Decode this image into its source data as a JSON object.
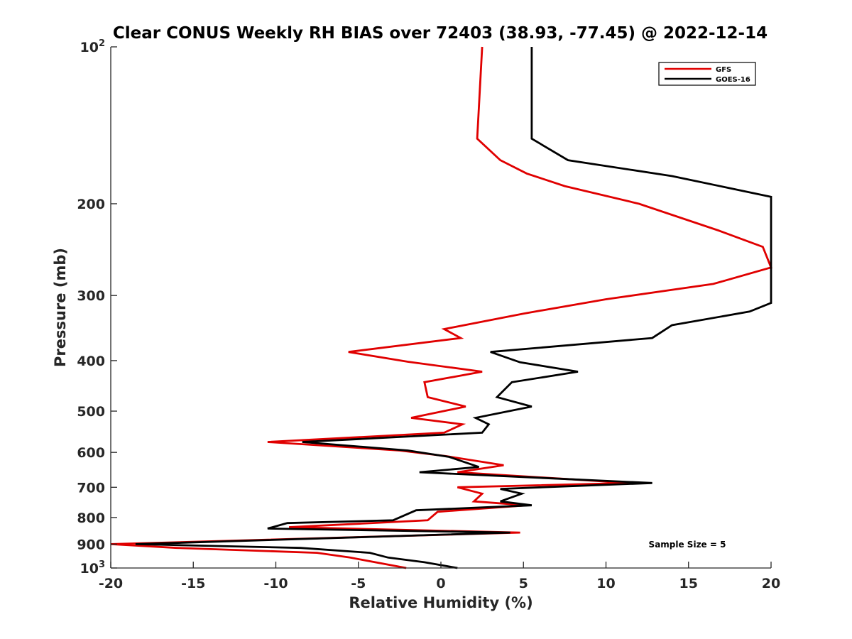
{
  "chart_data": {
    "type": "line",
    "title": "Clear CONUS Weekly RH BIAS over 72403 (38.93, -77.45) @ 2022-12-14",
    "xlabel": "Relative Humidity (%)",
    "ylabel": "Pressure (mb)",
    "xlim": [
      -20,
      20
    ],
    "ylim": [
      100,
      1000
    ],
    "y_scale": "log",
    "y_reversed": true,
    "grid": false,
    "legend_position": "top-right",
    "x_ticks": [
      {
        "value": -20,
        "label": "-20"
      },
      {
        "value": -15,
        "label": "-15"
      },
      {
        "value": -10,
        "label": "-10"
      },
      {
        "value": -5,
        "label": "-5"
      },
      {
        "value": 0,
        "label": "0"
      },
      {
        "value": 5,
        "label": "5"
      },
      {
        "value": 10,
        "label": "10"
      },
      {
        "value": 15,
        "label": "15"
      },
      {
        "value": 20,
        "label": "20"
      }
    ],
    "y_ticks": [
      {
        "value": 100,
        "base": "10",
        "exp": "2"
      },
      {
        "value": 200,
        "base": "200",
        "exp": ""
      },
      {
        "value": 300,
        "base": "300",
        "exp": ""
      },
      {
        "value": 400,
        "base": "400",
        "exp": ""
      },
      {
        "value": 500,
        "base": "500",
        "exp": ""
      },
      {
        "value": 600,
        "base": "600",
        "exp": ""
      },
      {
        "value": 700,
        "base": "700",
        "exp": ""
      },
      {
        "value": 800,
        "base": "800",
        "exp": ""
      },
      {
        "value": 900,
        "base": "900",
        "exp": ""
      },
      {
        "value": 1000,
        "base": "10",
        "exp": "3"
      }
    ],
    "series": [
      {
        "name": "GFS",
        "color": "#e00000",
        "points": [
          {
            "x": 2.5,
            "p": 100
          },
          {
            "x": 2.2,
            "p": 150
          },
          {
            "x": 3.6,
            "p": 165
          },
          {
            "x": 5.2,
            "p": 175
          },
          {
            "x": 7.5,
            "p": 185
          },
          {
            "x": 12.0,
            "p": 200
          },
          {
            "x": 16.8,
            "p": 225
          },
          {
            "x": 19.5,
            "p": 242
          },
          {
            "x": 20.0,
            "p": 265
          },
          {
            "x": 16.5,
            "p": 285
          },
          {
            "x": 10.0,
            "p": 305
          },
          {
            "x": 5.0,
            "p": 325
          },
          {
            "x": 0.2,
            "p": 348
          },
          {
            "x": 1.2,
            "p": 362
          },
          {
            "x": -5.6,
            "p": 385
          },
          {
            "x": -2.0,
            "p": 402
          },
          {
            "x": 2.5,
            "p": 420
          },
          {
            "x": -1.0,
            "p": 440
          },
          {
            "x": -0.8,
            "p": 470
          },
          {
            "x": 1.5,
            "p": 490
          },
          {
            "x": -1.8,
            "p": 515
          },
          {
            "x": 1.3,
            "p": 530
          },
          {
            "x": 0.2,
            "p": 550
          },
          {
            "x": -10.5,
            "p": 573
          },
          {
            "x": -2.5,
            "p": 595
          },
          {
            "x": 0.3,
            "p": 610
          },
          {
            "x": 3.8,
            "p": 635
          },
          {
            "x": 1.0,
            "p": 655
          },
          {
            "x": 11.5,
            "p": 687
          },
          {
            "x": 1.0,
            "p": 700
          },
          {
            "x": 2.5,
            "p": 720
          },
          {
            "x": 2.0,
            "p": 745
          },
          {
            "x": 5.2,
            "p": 758
          },
          {
            "x": -0.2,
            "p": 780
          },
          {
            "x": -0.8,
            "p": 810
          },
          {
            "x": -9.2,
            "p": 835
          },
          {
            "x": 4.8,
            "p": 855
          },
          {
            "x": -20.0,
            "p": 900
          },
          {
            "x": -16.0,
            "p": 915
          },
          {
            "x": -7.5,
            "p": 935
          },
          {
            "x": -5.5,
            "p": 955
          },
          {
            "x": -2.1,
            "p": 1000
          }
        ]
      },
      {
        "name": "GOES-16",
        "color": "#000000",
        "points": [
          {
            "x": 5.5,
            "p": 100
          },
          {
            "x": 5.5,
            "p": 125
          },
          {
            "x": 5.5,
            "p": 150
          },
          {
            "x": 7.7,
            "p": 165
          },
          {
            "x": 14.0,
            "p": 177
          },
          {
            "x": 20.0,
            "p": 194
          },
          {
            "x": 20.0,
            "p": 265
          },
          {
            "x": 20.0,
            "p": 310
          },
          {
            "x": 18.7,
            "p": 322
          },
          {
            "x": 14.0,
            "p": 342
          },
          {
            "x": 12.8,
            "p": 362
          },
          {
            "x": 3.0,
            "p": 385
          },
          {
            "x": 4.8,
            "p": 403
          },
          {
            "x": 8.3,
            "p": 420
          },
          {
            "x": 4.3,
            "p": 440
          },
          {
            "x": 3.4,
            "p": 470
          },
          {
            "x": 5.5,
            "p": 490
          },
          {
            "x": 2.1,
            "p": 515
          },
          {
            "x": 2.9,
            "p": 530
          },
          {
            "x": 2.5,
            "p": 550
          },
          {
            "x": -8.4,
            "p": 573
          },
          {
            "x": -2.0,
            "p": 595
          },
          {
            "x": 0.5,
            "p": 612
          },
          {
            "x": 2.3,
            "p": 640
          },
          {
            "x": -1.3,
            "p": 655
          },
          {
            "x": 12.8,
            "p": 687
          },
          {
            "x": 3.6,
            "p": 705
          },
          {
            "x": 4.9,
            "p": 720
          },
          {
            "x": 3.6,
            "p": 745
          },
          {
            "x": 5.5,
            "p": 758
          },
          {
            "x": -1.5,
            "p": 775
          },
          {
            "x": -2.9,
            "p": 810
          },
          {
            "x": -9.3,
            "p": 820
          },
          {
            "x": -10.5,
            "p": 840
          },
          {
            "x": 4.2,
            "p": 855
          },
          {
            "x": -18.5,
            "p": 900
          },
          {
            "x": -8.5,
            "p": 915
          },
          {
            "x": -4.3,
            "p": 935
          },
          {
            "x": -3.2,
            "p": 955
          },
          {
            "x": -1.0,
            "p": 975
          },
          {
            "x": 1.0,
            "p": 1000
          }
        ]
      }
    ],
    "annotations": [
      {
        "text": "Sample Size = 5",
        "position": "bottom-right"
      }
    ]
  }
}
